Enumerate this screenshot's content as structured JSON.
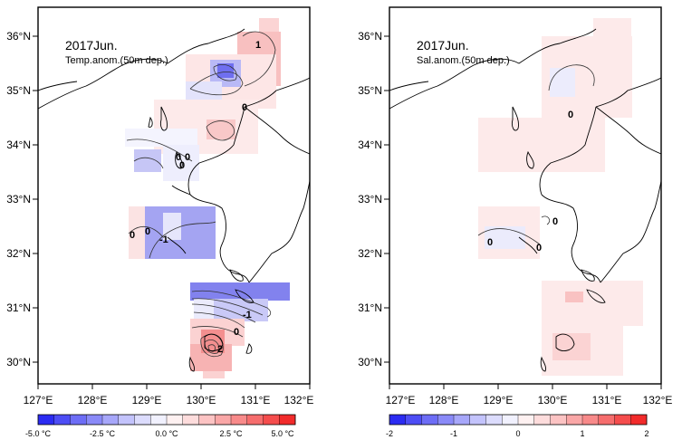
{
  "panels": [
    {
      "id": "temp",
      "title": "2017Jun.",
      "subtitle": "Temp.anom.(50m dep.)",
      "contour_labels": [
        "1",
        "0",
        "0",
        "0",
        "0",
        "0",
        "0",
        "-1",
        "-1",
        "0",
        "2"
      ],
      "colorbar_labels": [
        "-5.0 °C",
        "-2.5 °C",
        "0.0 °C",
        "2.5 °C",
        "5.0 °C"
      ]
    },
    {
      "id": "sal",
      "title": "2017Jun.",
      "subtitle": "Sal.anom.(50m dep.)",
      "contour_labels": [
        "0",
        "0",
        "0",
        "0"
      ],
      "colorbar_labels": [
        "-2",
        "-1",
        "0",
        "1",
        "2"
      ]
    }
  ],
  "map_axes": {
    "lon_ticks": [
      "127°E",
      "128°E",
      "129°E",
      "130°E",
      "131°E",
      "132°E"
    ],
    "lat_ticks": [
      "36°N",
      "35°N",
      "34°N",
      "33°N",
      "32°N",
      "31°N",
      "30°N"
    ]
  },
  "colorbar": {
    "steps": 16,
    "colors": [
      "#2b2bf2",
      "#4d4df5",
      "#6d6df6",
      "#8a8af8",
      "#a7a7fa",
      "#c3c3fc",
      "#dcdcfd",
      "#f1f1fe",
      "#fef1f1",
      "#fddcdc",
      "#fcc3c3",
      "#faa7a7",
      "#f88a8a",
      "#f66d6d",
      "#f54d4d",
      "#f22b2b"
    ]
  }
}
